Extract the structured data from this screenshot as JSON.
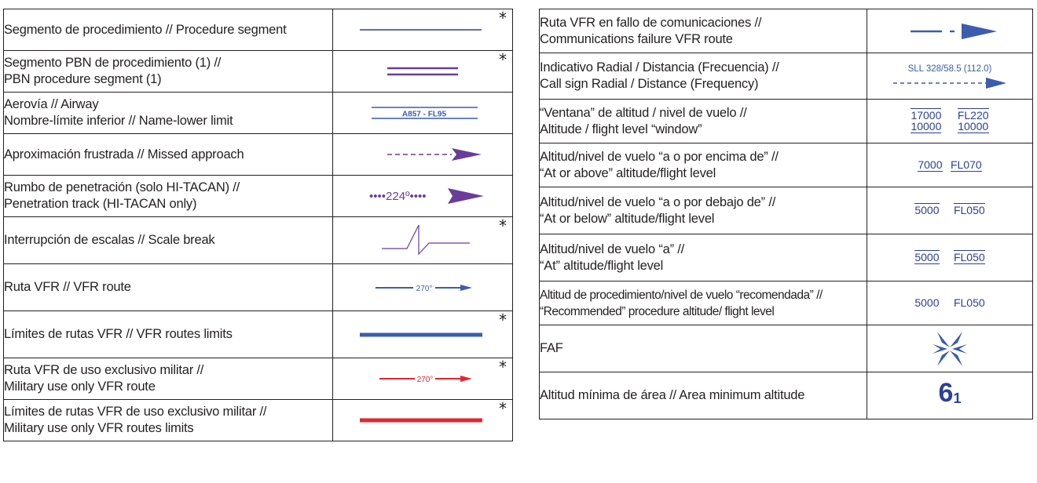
{
  "colors": {
    "text": "#231f20",
    "symbol_blue": "#2b3f9b",
    "symbol_purple": "#6a3d9a",
    "symbol_red": "#e3262f",
    "symbol_blue_light": "#3c5cad"
  },
  "asterisk": "*",
  "left_rows": [
    {
      "lines": [
        "Segmento de procedimiento // Procedure segment"
      ],
      "symbol": "procedure-segment-icon",
      "asterisk": true
    },
    {
      "lines": [
        "Segmento PBN de procedimiento (1) //",
        "PBN procedure segment (1)"
      ],
      "symbol": "pbn-segment-icon",
      "asterisk": true
    },
    {
      "lines": [
        "Aerovía // Airway",
        "Nombre-límite inferior // Name-lower limit"
      ],
      "symbol": "airway-icon",
      "symbol_text": "A857 - FL95",
      "asterisk": false
    },
    {
      "lines": [
        "Aproximación frustrada // Missed approach"
      ],
      "symbol": "missed-approach-icon",
      "asterisk": false
    },
    {
      "lines": [
        "Rumbo de penetración (solo HI-TACAN) //",
        "Penetration track (HI-TACAN only)"
      ],
      "symbol": "penetration-track-icon",
      "symbol_text": "••••224º••••",
      "asterisk": false
    },
    {
      "lines": [
        "Interrupción de escalas // Scale break"
      ],
      "symbol": "scale-break-icon",
      "asterisk": true
    },
    {
      "lines": [
        "Ruta VFR // VFR route"
      ],
      "symbol": "vfr-route-icon",
      "symbol_text": "270°",
      "asterisk": false
    },
    {
      "lines": [
        "Límites de rutas VFR // VFR routes limits"
      ],
      "symbol": "vfr-limits-icon",
      "asterisk": true
    },
    {
      "lines": [
        "Ruta VFR de uso exclusivo militar //",
        "Military use only VFR route"
      ],
      "symbol": "military-vfr-route-icon",
      "symbol_text": "270°",
      "asterisk": true
    },
    {
      "lines": [
        "Límites de rutas VFR de uso exclusivo militar //",
        "Military use only VFR routes limits"
      ],
      "symbol": "military-vfr-limits-icon",
      "asterisk": true
    }
  ],
  "right_rows": [
    {
      "lines": [
        "Ruta VFR en fallo de comunicaciones //",
        "Communications failure VFR route"
      ],
      "symbol": "comm-failure-route-icon"
    },
    {
      "lines": [
        "Indicativo Radial / Distancia (Frecuencia) //",
        "Call sign Radial / Distance (Frequency)"
      ],
      "symbol": "radial-distance-icon",
      "symbol_text": "SLL 328/58.5 (112.0)"
    },
    {
      "lines": [
        "“Ventana” de altitud / nivel de vuelo //",
        "Altitude / flight level “window”"
      ],
      "symbol": "altitude-window-icon",
      "pairs": [
        {
          "top": "17000",
          "bottom": "10000"
        },
        {
          "top": "FL220",
          "bottom": "10000"
        }
      ]
    },
    {
      "lines": [
        "Altitud/nivel de vuelo “a o por encima de” //",
        "“At or above” altitude/flight level"
      ],
      "symbol": "at-or-above-icon",
      "values": [
        "7000",
        "FL070"
      ]
    },
    {
      "lines": [
        "Altitud/nivel de vuelo “a o por debajo de” //",
        "“At or below” altitude/flight level"
      ],
      "symbol": "at-or-below-icon",
      "values": [
        "5000",
        "FL050"
      ]
    },
    {
      "lines": [
        "Altitud/nivel de vuelo “a” //",
        "“At” altitude/flight level"
      ],
      "symbol": "at-altitude-icon",
      "values": [
        "5000",
        "FL050"
      ]
    },
    {
      "lines": [
        "Altitud de procedimiento/nivel de vuelo “recomendada” //",
        "“Recommended” procedure altitude/ flight level"
      ],
      "symbol": "recommended-altitude-icon",
      "values": [
        "5000",
        "FL050"
      ]
    },
    {
      "lines": [
        "FAF"
      ],
      "symbol": "faf-icon"
    },
    {
      "lines": [
        "Altitud mínima de área // Area minimum altitude"
      ],
      "symbol": "area-min-altitude-icon",
      "main": "6",
      "sub": "1"
    }
  ]
}
